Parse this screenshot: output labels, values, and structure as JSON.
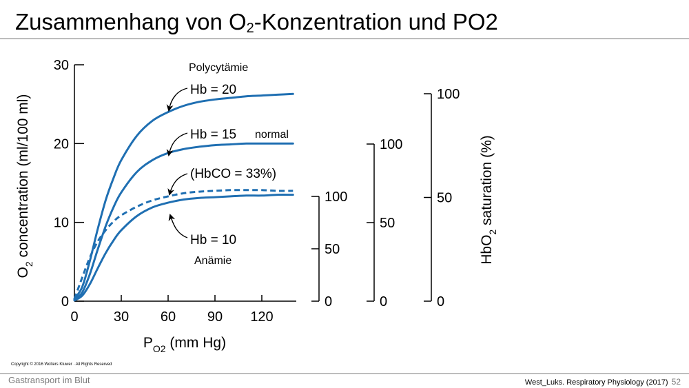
{
  "slide": {
    "title_pre": "Zusammenhang von O",
    "title_sub": "2",
    "title_post": "-Konzentration und PO2",
    "copyright": "Copyright © 2016 Wolters Kluwer · All Rights Reserved",
    "footer_left": "Gastransport im Blut",
    "footer_right": "West_Luks. Respiratory Physiology (2017)",
    "page_number": "52"
  },
  "colors": {
    "curve": "#1f6fb2",
    "axis": "#000000",
    "rule": "#bdbdbd",
    "footer_gray": "#7a7a7a"
  },
  "chart_data": {
    "type": "line",
    "xlabel_main": "P",
    "xlabel_sub": "O2",
    "xlabel_unit": " (mm Hg)",
    "ylabel_pre": "O",
    "ylabel_sub": "2",
    "ylabel_post": " concentration (ml/100 ml)",
    "xlim": [
      0,
      140
    ],
    "ylim": [
      0,
      30
    ],
    "x_ticks": [
      0,
      30,
      60,
      90,
      120
    ],
    "y_ticks": [
      0,
      10,
      20,
      30
    ],
    "x": [
      0,
      5,
      10,
      15,
      20,
      25,
      30,
      40,
      50,
      60,
      70,
      80,
      90,
      100,
      110,
      120,
      130,
      140
    ],
    "series": [
      {
        "name": "Hb = 20",
        "style": "solid",
        "values": [
          0.3,
          1.8,
          5.2,
          9.2,
          12.8,
          15.6,
          17.9,
          21.0,
          22.9,
          24.0,
          24.8,
          25.3,
          25.6,
          25.8,
          26.0,
          26.1,
          26.2,
          26.3
        ]
      },
      {
        "name": "Hb = 15",
        "style": "solid",
        "values": [
          0.2,
          1.1,
          3.5,
          6.6,
          9.5,
          11.9,
          13.8,
          16.4,
          17.9,
          18.8,
          19.3,
          19.6,
          19.8,
          19.9,
          20.0,
          20.0,
          20.0,
          20.0
        ]
      },
      {
        "name": "(HbCO = 33%)",
        "style": "dashed",
        "values": [
          0.3,
          3.0,
          5.6,
          7.6,
          9.0,
          10.1,
          10.9,
          12.0,
          12.8,
          13.3,
          13.7,
          13.9,
          14.0,
          14.1,
          14.1,
          14.1,
          14.0,
          14.0
        ]
      },
      {
        "name": "Hb = 10",
        "style": "solid",
        "values": [
          0.1,
          0.7,
          2.2,
          4.2,
          6.1,
          7.7,
          9.0,
          10.8,
          11.9,
          12.5,
          12.9,
          13.1,
          13.2,
          13.3,
          13.4,
          13.4,
          13.5,
          13.5
        ]
      }
    ],
    "annotations": {
      "polycythemia": "Polycytämie",
      "normal": "normal",
      "anemia": "Anämie"
    },
    "saturation_axes": [
      {
        "ticks": [
          "0",
          "50",
          "100"
        ]
      },
      {
        "ticks": [
          "0",
          "50",
          "100"
        ]
      },
      {
        "ticks": [
          "0",
          "50",
          "100"
        ]
      }
    ],
    "saturation_label_pre": "HbO",
    "saturation_label_sub": "2",
    "saturation_label_post": " saturation (%)"
  }
}
